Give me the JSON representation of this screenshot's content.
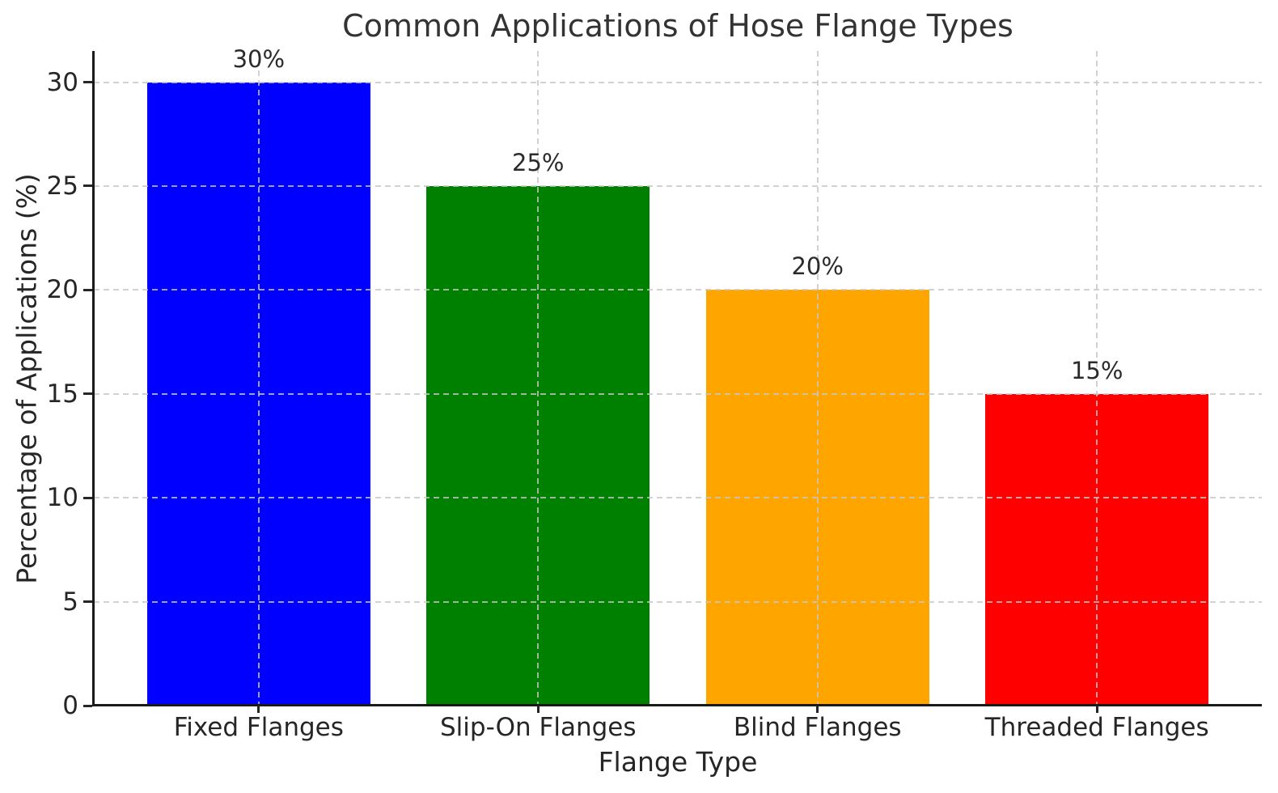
{
  "chart_data": {
    "type": "bar",
    "title": "Common Applications of Hose Flange Types",
    "xlabel": "Flange Type",
    "ylabel": "Percentage of Applications (%)",
    "categories": [
      "Fixed Flanges",
      "Slip-On Flanges",
      "Blind Flanges",
      "Threaded Flanges"
    ],
    "values": [
      30,
      25,
      20,
      15
    ],
    "value_labels": [
      "30%",
      "25%",
      "20%",
      "15%"
    ],
    "bar_colors": [
      "#0000ff",
      "#008000",
      "#ffa500",
      "#ff0000"
    ],
    "yticks": [
      0,
      5,
      10,
      15,
      20,
      25,
      30
    ],
    "ylim": [
      0,
      31.5
    ],
    "grid": "dashed horizontal lines at y ticks and dashed vertical lines at bar centers, drawn over bars",
    "legend": "none",
    "colors": {
      "grid": "#c6c6c6",
      "text": "#262626",
      "title": "#333333",
      "spine": "#1a1a1a",
      "background": "#ffffff"
    }
  }
}
